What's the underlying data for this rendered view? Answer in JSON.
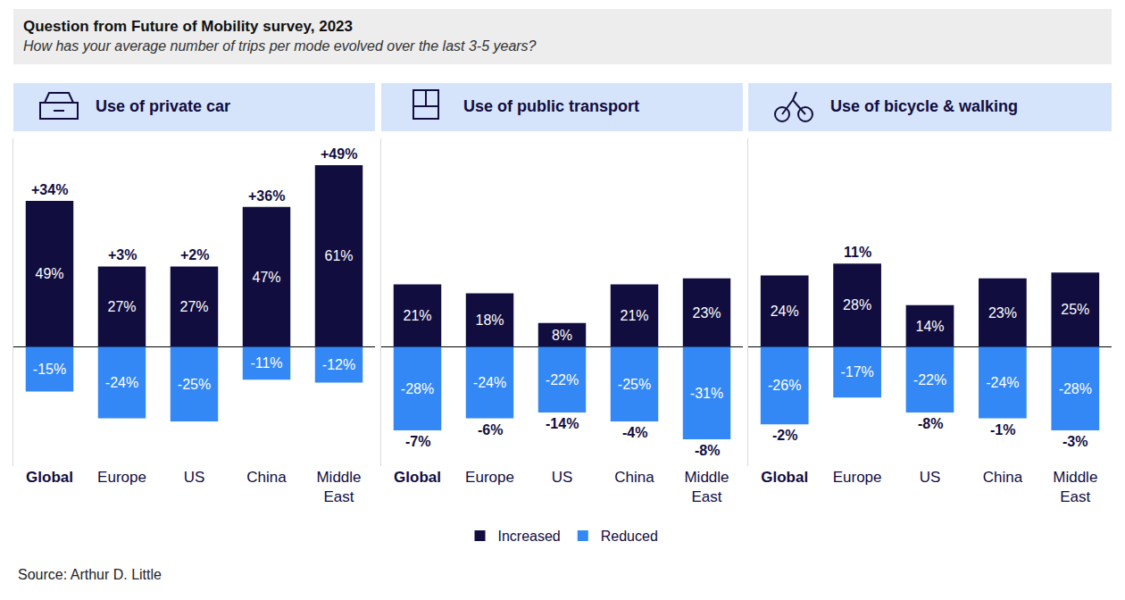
{
  "header": {
    "title": "Question from Future of Mobility survey, 2023",
    "subtitle": "How has your average number of trips per mode evolved over the last 3-5 years?"
  },
  "source": "Source: Arthur D. Little",
  "chart_data": [
    {
      "type": "bar",
      "title": "Use of private car",
      "categories": [
        "Global",
        "Europe",
        "US",
        "China",
        "Middle East"
      ],
      "series": [
        {
          "name": "Increased",
          "color": "#110d3f",
          "values": [
            49,
            27,
            27,
            47,
            61
          ],
          "value_labels": [
            "49%",
            "27%",
            "27%",
            "47%",
            "61%"
          ]
        },
        {
          "name": "Reduced",
          "color": "#3388f5",
          "values": [
            -15,
            -24,
            -25,
            -11,
            -12
          ],
          "value_labels": [
            "-15%",
            "-24%",
            "-25%",
            "-11%",
            "-12%"
          ]
        }
      ],
      "net_change": {
        "values": [
          34,
          3,
          2,
          36,
          49
        ],
        "value_labels": [
          "+34%",
          "+3%",
          "+2%",
          "+36%",
          "+49%"
        ]
      },
      "stacked": true,
      "data_labels": true,
      "ylim": [
        -40,
        70
      ],
      "yticks": [
        0
      ],
      "tick_labels": "x",
      "grid": false,
      "legend": "bottom"
    },
    {
      "type": "bar",
      "title": "Use of public transport",
      "categories": [
        "Global",
        "Europe",
        "US",
        "China",
        "Middle East"
      ],
      "series": [
        {
          "name": "Increased",
          "color": "#110d3f",
          "values": [
            21,
            18,
            8,
            21,
            23
          ],
          "value_labels": [
            "21%",
            "18%",
            "8%",
            "21%",
            "23%"
          ]
        },
        {
          "name": "Reduced",
          "color": "#3388f5",
          "values": [
            -28,
            -24,
            -22,
            -25,
            -31
          ],
          "value_labels": [
            "-28%",
            "-24%",
            "-22%",
            "-25%",
            "-31%"
          ]
        }
      ],
      "net_change": {
        "values": [
          -7,
          -6,
          -14,
          -4,
          -8
        ],
        "value_labels": [
          "-7%",
          "-6%",
          "-14%",
          "-4%",
          "-8%"
        ]
      },
      "stacked": true,
      "data_labels": true,
      "ylim": [
        -40,
        70
      ],
      "yticks": [
        0
      ],
      "tick_labels": "x",
      "grid": false,
      "legend": "bottom"
    },
    {
      "type": "bar",
      "title": "Use of bicycle & walking",
      "categories": [
        "Global",
        "Europe",
        "US",
        "China",
        "Middle East"
      ],
      "series": [
        {
          "name": "Increased",
          "color": "#110d3f",
          "values": [
            24,
            28,
            14,
            23,
            25
          ],
          "value_labels": [
            "24%",
            "28%",
            "14%",
            "23%",
            "25%"
          ]
        },
        {
          "name": "Reduced",
          "color": "#3388f5",
          "values": [
            -26,
            -17,
            -22,
            -24,
            -28
          ],
          "value_labels": [
            "-26%",
            "-17%",
            "-22%",
            "-24%",
            "-28%"
          ]
        }
      ],
      "net_change": {
        "values": [
          -2,
          11,
          -8,
          -1,
          -3
        ],
        "value_labels": [
          "-2%",
          "11%",
          "-8%",
          "-1%",
          "-3%"
        ]
      },
      "stacked": true,
      "data_labels": true,
      "ylim": [
        -40,
        70
      ],
      "yticks": [
        0
      ],
      "tick_labels": "x",
      "grid": false,
      "legend": "bottom"
    }
  ]
}
